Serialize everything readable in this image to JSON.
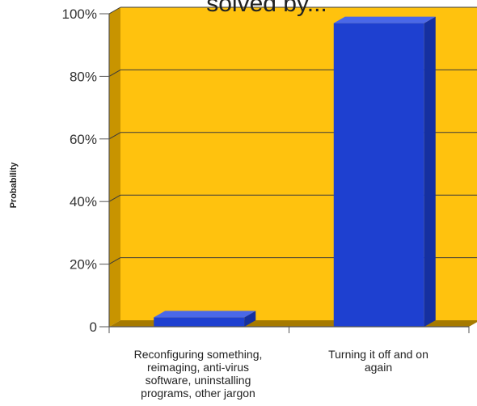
{
  "chart_data": {
    "type": "bar",
    "title": "solved by...",
    "xlabel": "",
    "ylabel": "Probability",
    "categories": [
      "Reconfiguring something,\nreimaging, anti-virus\nsoftware, uninstalling\nprograms, other jargon",
      "Turning it off and on\nagain"
    ],
    "values": [
      3,
      97
    ],
    "value_unit": "percent",
    "ylim": [
      0,
      100
    ],
    "yticks": [
      0,
      20,
      40,
      60,
      80,
      100
    ],
    "ytick_labels": [
      "0",
      "20%",
      "40%",
      "60%",
      "80%",
      "100%"
    ],
    "grid": true,
    "legend": "none",
    "style": "3d",
    "colors": {
      "plot_background": "#FFC20E",
      "plot_side_wall": "#C89400",
      "plot_floor": "#A67A00",
      "bar_front": "#1E40D0",
      "bar_side": "#1530A0",
      "bar_top": "#4A68E8",
      "gridline": "#3A3A3A"
    }
  }
}
